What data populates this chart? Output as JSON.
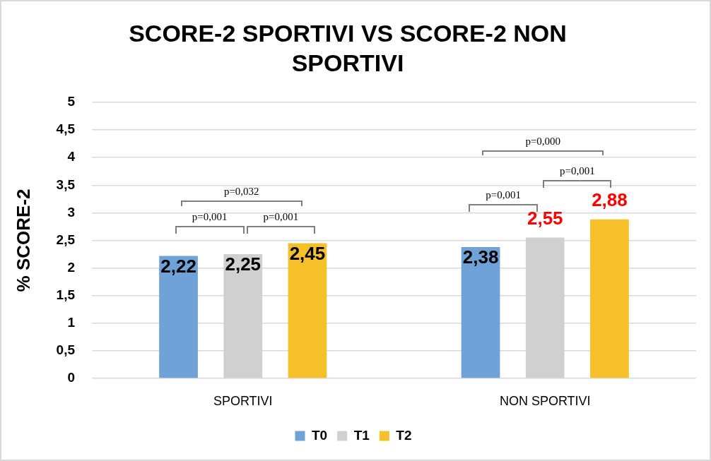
{
  "chart_data": {
    "type": "bar",
    "title": "SCORE-2 SPORTIVI VS SCORE-2 NON SPORTIVI",
    "ylabel": "% SCORE-2",
    "categories": [
      "SPORTIVI",
      "NON SPORTIVI"
    ],
    "series": [
      {
        "name": "T0",
        "color": "#6fa3d8",
        "values": [
          2.22,
          2.38
        ],
        "value_labels": [
          "2,22",
          "2,38"
        ]
      },
      {
        "name": "T1",
        "color": "#d0d0d0",
        "values": [
          2.25,
          2.55
        ],
        "value_labels": [
          "2,25",
          "2,55"
        ]
      },
      {
        "name": "T2",
        "color": "#f5c02a",
        "values": [
          2.45,
          2.88
        ],
        "value_labels": [
          "2,45",
          "2,88"
        ]
      }
    ],
    "ylim": [
      0,
      5
    ],
    "yticks": [
      0,
      {
        "value": 0.5,
        "label": "0,5"
      },
      1,
      {
        "value": 1.5,
        "label": "1,5"
      },
      2,
      {
        "value": 2.5,
        "label": "2,5"
      },
      3,
      {
        "value": 3.5,
        "label": "3,5"
      },
      4,
      {
        "value": 4.5,
        "label": "4,5"
      },
      5
    ],
    "grid": "y",
    "legend": "bottom",
    "annotations": [
      "p=0,032",
      "p=0,001",
      "p=0,001",
      "p=0,000",
      "p=0,001",
      "p=0,001"
    ]
  }
}
